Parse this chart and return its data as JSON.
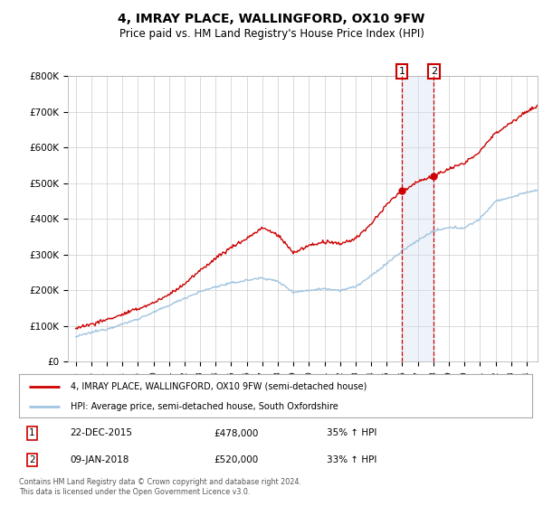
{
  "title": "4, IMRAY PLACE, WALLINGFORD, OX10 9FW",
  "subtitle": "Price paid vs. HM Land Registry's House Price Index (HPI)",
  "ylim": [
    0,
    800000
  ],
  "yticks": [
    0,
    100000,
    200000,
    300000,
    400000,
    500000,
    600000,
    700000,
    800000
  ],
  "ytick_labels": [
    "£0",
    "£100K",
    "£200K",
    "£300K",
    "£400K",
    "£500K",
    "£600K",
    "£700K",
    "£800K"
  ],
  "hpi_color": "#a0c4e0",
  "property_color": "#cc0000",
  "transaction1_date": "22-DEC-2015",
  "transaction1_price": 478000,
  "transaction1_pct": "35%",
  "transaction1_year": 2015.97,
  "transaction2_date": "09-JAN-2018",
  "transaction2_price": 520000,
  "transaction2_pct": "33%",
  "transaction2_year": 2018.03,
  "legend_label_property": "4, IMRAY PLACE, WALLINGFORD, OX10 9FW (semi-detached house)",
  "legend_label_hpi": "HPI: Average price, semi-detached house, South Oxfordshire",
  "footer": "Contains HM Land Registry data © Crown copyright and database right 2024.\nThis data is licensed under the Open Government Licence v3.0.",
  "background_color": "#ffffff",
  "grid_color": "#cccccc",
  "shade_color": "#d0dff0",
  "xlim_start": 1994.5,
  "xlim_end": 2024.7,
  "xticks": [
    1995,
    1996,
    1997,
    1998,
    1999,
    2000,
    2001,
    2002,
    2003,
    2004,
    2005,
    2006,
    2007,
    2008,
    2009,
    2010,
    2011,
    2012,
    2013,
    2014,
    2015,
    2016,
    2017,
    2018,
    2019,
    2020,
    2021,
    2022,
    2023,
    2024
  ]
}
